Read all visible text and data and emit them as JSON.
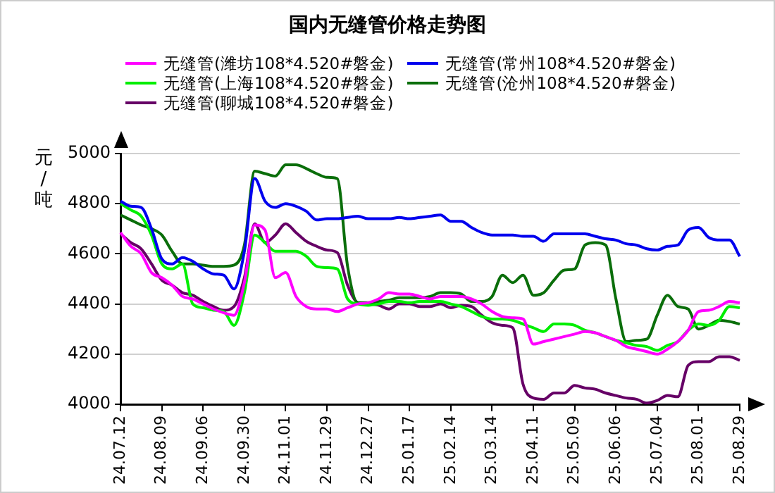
{
  "chart_data": {
    "type": "line",
    "title": "国内无缝管价格走势图",
    "ylabel": "元/吨",
    "categories": [
      "24.07.12",
      null,
      null,
      null,
      "24.08.09",
      null,
      null,
      null,
      "24.09.06",
      null,
      null,
      null,
      "24.09.30",
      null,
      null,
      null,
      "24.11.01",
      null,
      null,
      null,
      "24.11.29",
      null,
      null,
      null,
      "24.12.27",
      null,
      null,
      null,
      "25.01.17",
      null,
      null,
      null,
      "25.02.14",
      null,
      null,
      null,
      "25.03.14",
      null,
      null,
      null,
      "25.04.11",
      null,
      null,
      null,
      "25.05.09",
      null,
      null,
      null,
      "25.06.06",
      null,
      null,
      null,
      "25.07.04",
      null,
      null,
      null,
      "25.08.01",
      null,
      null,
      null,
      "25.08.29"
    ],
    "series": [
      {
        "name": "无缝管(潍坊108*4.520#磐金)",
        "color": "#ff00ff",
        "values": [
          4685,
          4630,
          4600,
          4525,
          4505,
          4475,
          4430,
          4420,
          4400,
          4380,
          4365,
          4355,
          4485,
          4715,
          4695,
          4505,
          4525,
          4430,
          4390,
          4380,
          4380,
          4370,
          4385,
          4400,
          4405,
          4420,
          4445,
          4440,
          4440,
          4430,
          4420,
          4430,
          4430,
          4430,
          4420,
          4400,
          4370,
          4350,
          4345,
          4340,
          4240,
          4250,
          4260,
          4270,
          4280,
          4290,
          4285,
          4270,
          4255,
          4230,
          4220,
          4210,
          4200,
          4220,
          4250,
          4295,
          4370,
          4375,
          4390,
          4410,
          4405
        ]
      },
      {
        "name": "无缝管(常州108*4.520#磐金)",
        "color": "#0000ee",
        "values": [
          4810,
          4790,
          4785,
          4700,
          4580,
          4560,
          4585,
          4570,
          4540,
          4520,
          4515,
          4460,
          4610,
          4900,
          4810,
          4785,
          4800,
          4790,
          4770,
          4735,
          4740,
          4740,
          4745,
          4750,
          4740,
          4740,
          4740,
          4745,
          4740,
          4745,
          4750,
          4755,
          4730,
          4730,
          4705,
          4685,
          4675,
          4675,
          4675,
          4670,
          4670,
          4650,
          4680,
          4680,
          4680,
          4680,
          4670,
          4660,
          4655,
          4640,
          4635,
          4620,
          4615,
          4630,
          4635,
          4695,
          4705,
          4665,
          4655,
          4655,
          4590
        ]
      },
      {
        "name": "无缝管(上海108*4.520#磐金)",
        "color": "#00ee00",
        "values": [
          4800,
          4775,
          4750,
          4675,
          4560,
          4540,
          4560,
          4400,
          4385,
          4375,
          4370,
          4315,
          4445,
          4675,
          4645,
          4610,
          4610,
          4610,
          4590,
          4550,
          4545,
          4540,
          4420,
          4400,
          4395,
          4400,
          4410,
          4410,
          4405,
          4410,
          4410,
          4410,
          4400,
          4390,
          4370,
          4350,
          4340,
          4340,
          4335,
          4320,
          4305,
          4290,
          4320,
          4320,
          4315,
          4295,
          4285,
          4270,
          4255,
          4245,
          4235,
          4230,
          4215,
          4235,
          4250,
          4295,
          4320,
          4315,
          4335,
          4390,
          4385
        ]
      },
      {
        "name": "无缝管(沧州108*4.520#磐金)",
        "color": "#0a6e0a",
        "values": [
          4755,
          4735,
          4715,
          4700,
          4675,
          4610,
          4560,
          4560,
          4555,
          4550,
          4550,
          4555,
          4635,
          4930,
          4920,
          4910,
          4955,
          4955,
          4940,
          4920,
          4905,
          4900,
          4550,
          4405,
          4405,
          4410,
          4415,
          4425,
          4425,
          4425,
          4430,
          4445,
          4445,
          4440,
          4410,
          4410,
          4430,
          4515,
          4485,
          4515,
          4435,
          4445,
          4495,
          4535,
          4540,
          4635,
          4645,
          4635,
          4420,
          4250,
          4255,
          4260,
          4355,
          4435,
          4390,
          4380,
          4300,
          4315,
          4335,
          4330,
          4320
        ]
      },
      {
        "name": "无缝管(聊城108*4.520#磐金)",
        "color": "#660066",
        "values": [
          4680,
          4645,
          4620,
          4560,
          4495,
          4475,
          4445,
          4435,
          4410,
          4390,
          4375,
          4390,
          4505,
          4720,
          4645,
          4675,
          4720,
          4685,
          4650,
          4630,
          4615,
          4605,
          4475,
          4405,
          4400,
          4395,
          4380,
          4400,
          4400,
          4390,
          4390,
          4400,
          4385,
          4395,
          4390,
          4355,
          4325,
          4315,
          4305,
          4080,
          4025,
          4020,
          4045,
          4045,
          4075,
          4065,
          4060,
          4045,
          4035,
          4025,
          4020,
          4005,
          4015,
          4035,
          4030,
          4155,
          4170,
          4170,
          4190,
          4190,
          4175
        ]
      }
    ],
    "ylim": [
      4000,
      5000
    ],
    "yticks": [
      4000,
      4200,
      4400,
      4600,
      4800,
      5000
    ],
    "grid": "y",
    "legend": "top",
    "marker": "none",
    "line_style": "solid"
  }
}
